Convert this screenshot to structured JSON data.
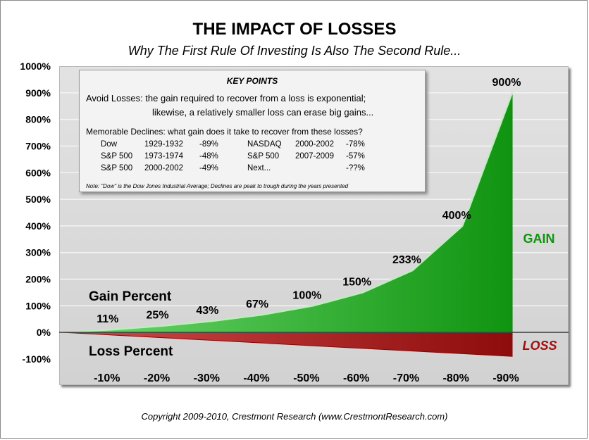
{
  "title": "THE IMPACT OF LOSSES",
  "subtitle": "Why The First Rule Of Investing Is Also The Second Rule...",
  "key_points": {
    "heading": "KEY POINTS",
    "avoid_line1": "Avoid Losses:  the gain required to recover from a loss is exponential;",
    "avoid_line2": "likewise, a relatively smaller loss can erase big gains...",
    "memorable": "Memorable Declines:  what gain does it take to recover from these losses?",
    "declines": [
      {
        "index": "Dow",
        "period": "1929-1932",
        "change": "-89%"
      },
      {
        "index": "S&P 500",
        "period": "1973-1974",
        "change": "-48%"
      },
      {
        "index": "S&P 500",
        "period": "2000-2002",
        "change": "-49%"
      },
      {
        "index": "NASDAQ",
        "period": "2000-2002",
        "change": "-78%"
      },
      {
        "index": "S&P 500",
        "period": "2007-2009",
        "change": "-57%"
      },
      {
        "index": "Next...",
        "period": "",
        "change": "-??%"
      }
    ],
    "note": "Note: \"Dow\" is the Dow Jones Industrial Average; Declines are peak to trough during the years presented"
  },
  "copyright": "Copyright 2009-2010, Crestmont Research (www.CrestmontResearch.com)",
  "chart_data": {
    "type": "area",
    "categories": [
      "-10%",
      "-20%",
      "-30%",
      "-40%",
      "-50%",
      "-60%",
      "-70%",
      "-80%",
      "-90%"
    ],
    "series": [
      {
        "name": "GAIN",
        "values": [
          11,
          25,
          43,
          67,
          100,
          150,
          233,
          400,
          900
        ],
        "color": "#1a9e1a"
      },
      {
        "name": "LOSS",
        "values": [
          -10,
          -20,
          -30,
          -40,
          -50,
          -60,
          -70,
          -80,
          -90
        ],
        "color": "#b01818"
      }
    ],
    "gain_labels": [
      "11%",
      "25%",
      "43%",
      "67%",
      "100%",
      "150%",
      "233%",
      "400%",
      "900%"
    ],
    "yticks": [
      "1000%",
      "900%",
      "800%",
      "700%",
      "600%",
      "500%",
      "400%",
      "300%",
      "200%",
      "100%",
      "0%",
      "-100%"
    ],
    "ylim": [
      -100,
      1000
    ],
    "annotations": {
      "gain_series": "GAIN",
      "loss_series": "LOSS",
      "gain_percent": "Gain Percent",
      "loss_percent": "Loss Percent"
    },
    "grid": true
  }
}
